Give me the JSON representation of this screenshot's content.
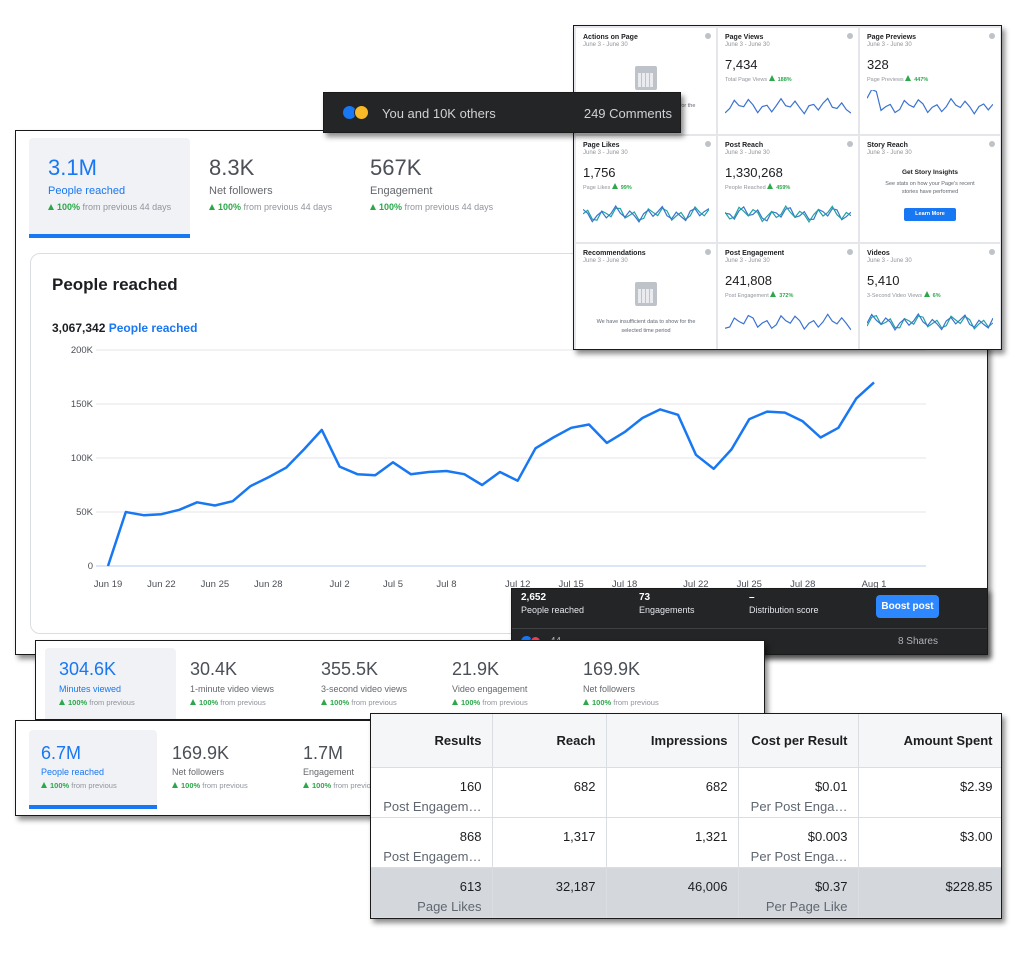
{
  "chart_data": {
    "type": "line",
    "title": "People reached",
    "total": "3,067,342",
    "categories": [
      "Jun 19",
      null,
      null,
      "Jun 22",
      null,
      null,
      "Jun 25",
      null,
      null,
      "Jun 28",
      null,
      null,
      null,
      "Jul 2",
      null,
      null,
      "Jul 5",
      null,
      null,
      "Jul 8",
      null,
      null,
      null,
      "Jul 12",
      null,
      null,
      "Jul 15",
      null,
      null,
      "Jul 18",
      null,
      null,
      null,
      "Jul 22",
      null,
      null,
      "Jul 25",
      null,
      null,
      "Jul 28",
      null,
      null,
      null,
      "Aug 1"
    ],
    "series": [
      {
        "name": "People reached",
        "color": "#1877f2",
        "values": [
          0,
          50000,
          47000,
          48000,
          52000,
          59000,
          56000,
          60000,
          74000,
          82000,
          91000,
          108000,
          126000,
          92000,
          85000,
          84000,
          96000,
          85000,
          87000,
          88000,
          85000,
          75000,
          87000,
          79000,
          109000,
          119000,
          128000,
          131000,
          114000,
          124000,
          137000,
          145000,
          140000,
          103000,
          90000,
          108000,
          136000,
          143000,
          142000,
          134000,
          119000,
          128000,
          155000,
          170000
        ]
      }
    ],
    "ylim": [
      0,
      200000
    ],
    "yticks": [
      0,
      {
        "value": 50000,
        "label": "50K"
      },
      {
        "value": 100000,
        "label": "100K"
      },
      {
        "value": 150000,
        "label": "150K"
      },
      {
        "value": 200000,
        "label": "200K"
      }
    ],
    "grid": true
  },
  "overview_tabs": [
    {
      "value": "3.1M",
      "label": "People reached",
      "change": "100%",
      "note": "from previous 44 days"
    },
    {
      "value": "8.3K",
      "label": "Net followers",
      "change": "100%",
      "note": "from previous 44 days"
    },
    {
      "value": "567K",
      "label": "Engagement",
      "change": "100%",
      "note": "from previous 44 days"
    }
  ],
  "video_tabs": [
    {
      "value": "304.6K",
      "label": "Minutes viewed",
      "change": "100%",
      "note": "from previous"
    },
    {
      "value": "30.4K",
      "label": "1-minute video views",
      "change": "100%",
      "note": "from previous"
    },
    {
      "value": "355.5K",
      "label": "3-second video views",
      "change": "100%",
      "note": "from previous"
    },
    {
      "value": "21.9K",
      "label": "Video engagement",
      "change": "100%",
      "note": "from previous"
    },
    {
      "value": "169.9K",
      "label": "Net followers",
      "change": "100%",
      "note": "from previous"
    }
  ],
  "summary_tabs": [
    {
      "value": "6.7M",
      "label": "People reached",
      "change": "100%",
      "note": "from previous"
    },
    {
      "value": "169.9K",
      "label": "Net followers",
      "change": "100%",
      "note": "from previous"
    },
    {
      "value": "1.7M",
      "label": "Engagement",
      "change": "100%",
      "note": "from previous"
    }
  ],
  "post_bar": {
    "reactions": "You and 10K others",
    "comments": "249 Comments"
  },
  "post_stats": {
    "metrics": [
      {
        "value": "2,652",
        "label": "People reached"
      },
      {
        "value": "73",
        "label": "Engagements"
      },
      {
        "value": "–",
        "label": "Distribution score"
      }
    ],
    "button": "Boost post",
    "reactions_count": "44",
    "shares": "8 Shares"
  },
  "insights": [
    {
      "title": "Actions on Page",
      "date": "June 3 - June 30",
      "note": "We have insufficient data to show for the selected time period"
    },
    {
      "title": "Page Views",
      "date": "June 3 - June 30",
      "value": "7,434",
      "sub_label": "Total Page Views",
      "change": "188%"
    },
    {
      "title": "Page Previews",
      "date": "June 3 - June 30",
      "value": "328",
      "sub_label": "Page Previews",
      "change": "447%"
    },
    {
      "title": "Page Likes",
      "date": "June 3 - June 30",
      "value": "1,756",
      "sub_label": "Page Likes",
      "change": "99%"
    },
    {
      "title": "Post Reach",
      "date": "June 3 - June 30",
      "value": "1,330,268",
      "sub_label": "People Reached",
      "change": "459%"
    },
    {
      "title": "Story Reach",
      "date": "June 3 - June 30",
      "heading": "Get Story Insights",
      "note": "See stats on how your Page's recent stories have performed",
      "button": "Learn More"
    },
    {
      "title": "Recommendations",
      "date": "June 3 - June 30",
      "note": "We have insufficient data to show for the selected time period"
    },
    {
      "title": "Post Engagement",
      "date": "June 3 - June 30",
      "value": "241,808",
      "sub_label": "Post Engagement",
      "change": "372%"
    },
    {
      "title": "Videos",
      "date": "June 3 - June 30",
      "value": "5,410",
      "sub_label": "3-Second Video Views",
      "change": "6%"
    }
  ],
  "table": {
    "columns": [
      "Results",
      "Reach",
      "Impressions",
      "Cost per Result",
      "Amount Spent"
    ],
    "rows": [
      [
        {
          "value": "160",
          "unit": "Post Engagem…"
        },
        "682",
        "682",
        {
          "value": "$0.01",
          "unit": "Per Post Enga…"
        },
        "$2.39"
      ],
      [
        {
          "value": "868",
          "unit": "Post Engagem…"
        },
        "1,317",
        "1,321",
        {
          "value": "$0.003",
          "unit": "Per Post Enga…"
        },
        "$3.00"
      ],
      [
        {
          "value": "613",
          "unit": "Page Likes"
        },
        "32,187",
        "46,006",
        {
          "value": "$0.37",
          "unit": "Per Page Like"
        },
        "$228.85"
      ]
    ]
  }
}
